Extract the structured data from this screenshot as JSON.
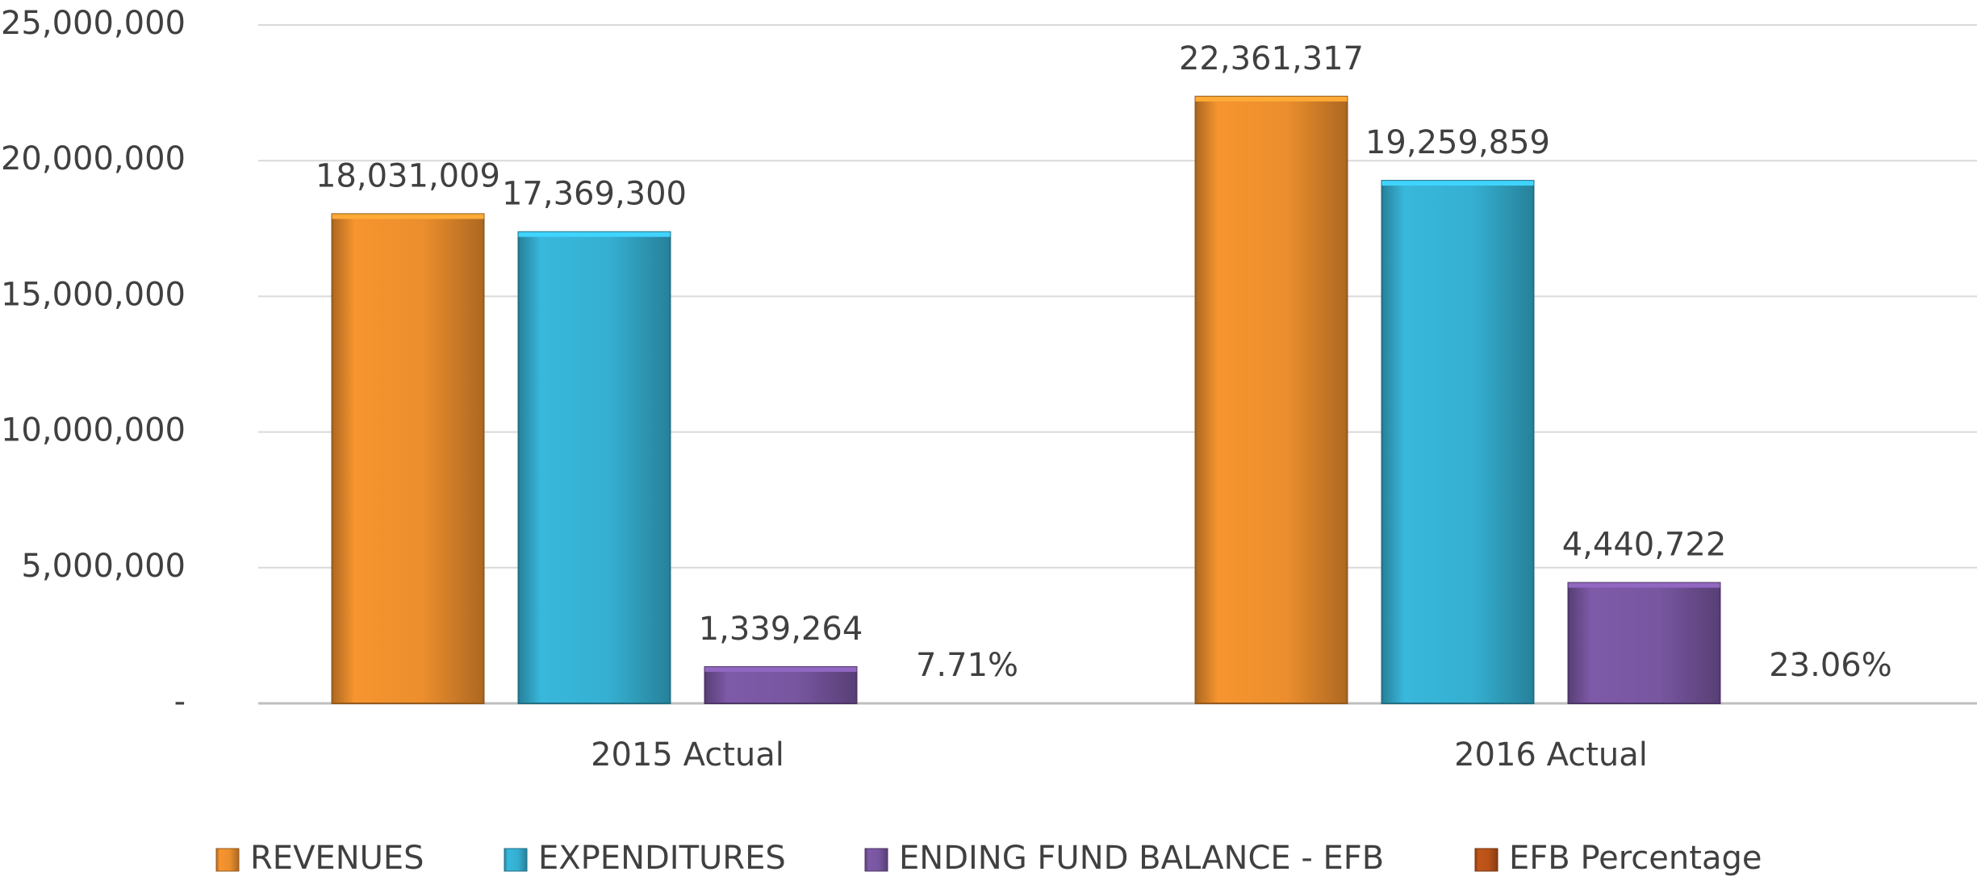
{
  "chart_data": {
    "type": "bar",
    "categories": [
      "2015 Actual",
      "2016 Actual"
    ],
    "series": [
      {
        "name": "REVENUES",
        "color": "#f7952f",
        "values": [
          18031009,
          22361317
        ],
        "value_labels": [
          "18,031,009",
          "22,361,317"
        ]
      },
      {
        "name": "EXPENDITURES",
        "color": "#38b8dc",
        "values": [
          17369300,
          19259859
        ],
        "value_labels": [
          "17,369,300",
          "19,259,859"
        ]
      },
      {
        "name": "ENDING FUND BALANCE - EFB",
        "color": "#7e5aa8",
        "values": [
          1339264,
          4440722
        ],
        "value_labels": [
          "1,339,264",
          "4,440,722"
        ]
      },
      {
        "name": "EFB Percentage",
        "color": "#c2561a",
        "values": [
          7.71,
          23.06
        ],
        "value_labels": [
          "7.71%",
          "23.06%"
        ]
      }
    ],
    "ylim": [
      0,
      25000000
    ],
    "yticks": [
      {
        "value": 0,
        "label": "-"
      },
      {
        "value": 5000000,
        "label": "5,000,000"
      },
      {
        "value": 10000000,
        "label": "10,000,000"
      },
      {
        "value": 15000000,
        "label": "15,000,000"
      },
      {
        "value": 20000000,
        "label": "20,000,000"
      },
      {
        "value": 25000000,
        "label": "25,000,000"
      }
    ],
    "grid": true,
    "legend": "bottom"
  }
}
